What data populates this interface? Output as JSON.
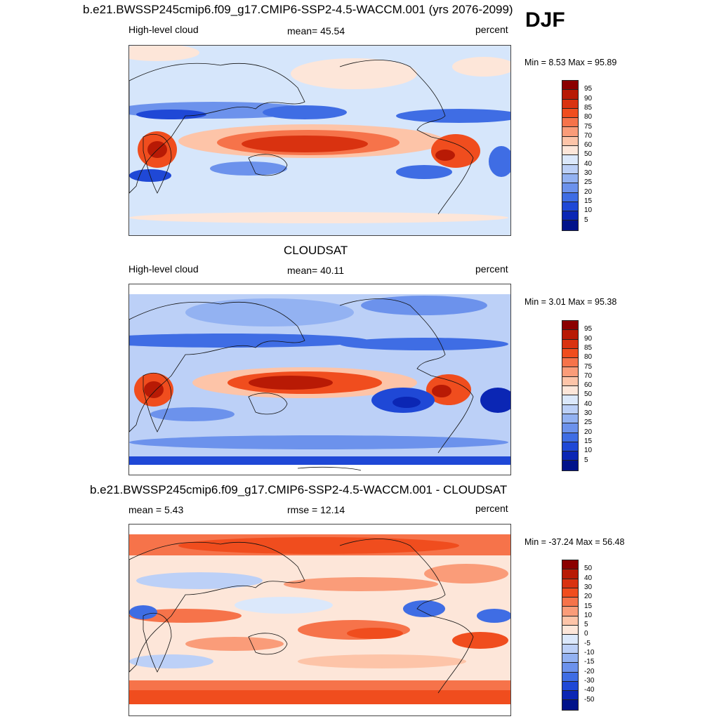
{
  "season": "DJF",
  "panels": [
    {
      "title": "b.e21.BWSSP245cmip6.f09_g17.CMIP6-SSP2-4.5-WACCM.001 (yrs 2076-2099)",
      "left_label": "High-level cloud",
      "center_label": "mean=  45.54",
      "right_label": "percent",
      "minmax": "Min =   8.53 Max =  95.89",
      "colorbar": {
        "labels": [
          "95",
          "90",
          "85",
          "80",
          "75",
          "70",
          "60",
          "50",
          "40",
          "30",
          "25",
          "20",
          "15",
          "10",
          "5"
        ],
        "colors": [
          "#8b0000",
          "#b81a05",
          "#d93210",
          "#f04d1e",
          "#f6734a",
          "#fa9c79",
          "#fdc4a8",
          "#fde6d9",
          "#dbe8fb",
          "#bcd0f7",
          "#93b2f2",
          "#6c92ec",
          "#3f6de4",
          "#1f48d6",
          "#0b26b4",
          "#00128a"
        ]
      }
    },
    {
      "title": "CLOUDSAT",
      "left_label": "High-level cloud",
      "center_label": "mean=  40.11",
      "right_label": "percent",
      "minmax": "Min =   3.01 Max =  95.38",
      "colorbar": {
        "labels": [
          "95",
          "90",
          "85",
          "80",
          "75",
          "70",
          "60",
          "50",
          "40",
          "30",
          "25",
          "20",
          "15",
          "10",
          "5"
        ],
        "colors": [
          "#8b0000",
          "#b81a05",
          "#d93210",
          "#f04d1e",
          "#f6734a",
          "#fa9c79",
          "#fdc4a8",
          "#fde6d9",
          "#dbe8fb",
          "#bcd0f7",
          "#93b2f2",
          "#6c92ec",
          "#3f6de4",
          "#1f48d6",
          "#0b26b4",
          "#00128a"
        ]
      }
    },
    {
      "title": "b.e21.BWSSP245cmip6.f09_g17.CMIP6-SSP2-4.5-WACCM.001 - CLOUDSAT",
      "left_label": "mean =   5.43",
      "center_label": "rmse =  12.14",
      "right_label": "percent",
      "minmax": "Min = -37.24 Max =  56.48",
      "colorbar": {
        "labels": [
          "50",
          "40",
          "30",
          "20",
          "15",
          "10",
          "5",
          "0",
          "-5",
          "-10",
          "-15",
          "-20",
          "-30",
          "-40",
          "-50"
        ],
        "colors": [
          "#8b0000",
          "#b81a05",
          "#d93210",
          "#f04d1e",
          "#f6734a",
          "#fa9c79",
          "#fdc4a8",
          "#fde6d9",
          "#dbe8fb",
          "#bcd0f7",
          "#93b2f2",
          "#6c92ec",
          "#3f6de4",
          "#1f48d6",
          "#0b26b4",
          "#00128a"
        ]
      }
    }
  ]
}
